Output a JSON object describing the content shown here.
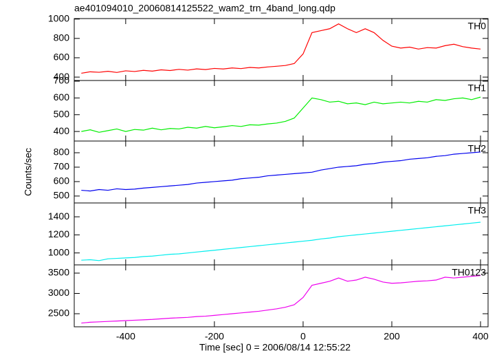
{
  "chart_data": [
    {
      "type": "line",
      "title": "ae401094010_20060814125522_wam2_trn_4band_long.qdp",
      "x": [
        -500,
        -480,
        -460,
        -440,
        -420,
        -400,
        -380,
        -360,
        -340,
        -320,
        -300,
        -280,
        -260,
        -240,
        -220,
        -200,
        -180,
        -160,
        -140,
        -120,
        -100,
        -80,
        -60,
        -40,
        -20,
        0,
        20,
        40,
        60,
        80,
        100,
        120,
        140,
        160,
        180,
        200,
        220,
        240,
        260,
        280,
        300,
        320,
        340,
        360,
        380,
        400
      ],
      "series": [
        {
          "name": "TH0",
          "color": "#ff0000",
          "values": [
            440,
            455,
            450,
            460,
            448,
            465,
            458,
            470,
            462,
            475,
            468,
            480,
            472,
            485,
            478,
            490,
            484,
            495,
            488,
            500,
            495,
            505,
            512,
            520,
            540,
            640,
            860,
            880,
            900,
            950,
            900,
            860,
            900,
            860,
            780,
            720,
            700,
            710,
            690,
            705,
            700,
            725,
            740,
            715,
            700,
            690
          ]
        }
      ],
      "xlim": [
        -516,
        417
      ],
      "xticks": [
        -400,
        -200,
        0,
        200,
        400
      ],
      "ylim": [
        365,
        1005
      ],
      "yticks": [
        400,
        600,
        800,
        1000
      ]
    },
    {
      "type": "line",
      "x": [
        -500,
        -480,
        -460,
        -440,
        -420,
        -400,
        -380,
        -360,
        -340,
        -320,
        -300,
        -280,
        -260,
        -240,
        -220,
        -200,
        -180,
        -160,
        -140,
        -120,
        -100,
        -80,
        -60,
        -40,
        -20,
        0,
        20,
        40,
        60,
        80,
        100,
        120,
        140,
        160,
        180,
        200,
        220,
        240,
        260,
        280,
        300,
        320,
        340,
        360,
        380,
        400
      ],
      "series": [
        {
          "name": "TH1",
          "color": "#00ee00",
          "values": [
            400,
            410,
            395,
            405,
            415,
            400,
            412,
            408,
            420,
            410,
            418,
            415,
            425,
            420,
            430,
            422,
            428,
            435,
            430,
            440,
            438,
            445,
            450,
            460,
            480,
            540,
            600,
            590,
            575,
            580,
            565,
            570,
            560,
            575,
            565,
            570,
            575,
            570,
            580,
            575,
            590,
            585,
            595,
            600,
            590,
            605
          ]
        }
      ],
      "xlim": [
        -516,
        417
      ],
      "xticks": [
        -400,
        -200,
        0,
        200,
        400
      ],
      "ylim": [
        343,
        704
      ],
      "yticks": [
        400,
        500,
        600,
        700
      ]
    },
    {
      "type": "line",
      "x": [
        -500,
        -480,
        -460,
        -440,
        -420,
        -400,
        -380,
        -360,
        -340,
        -320,
        -300,
        -280,
        -260,
        -240,
        -220,
        -200,
        -180,
        -160,
        -140,
        -120,
        -100,
        -80,
        -60,
        -40,
        -20,
        0,
        20,
        40,
        60,
        80,
        100,
        120,
        140,
        160,
        180,
        200,
        220,
        240,
        260,
        280,
        300,
        320,
        340,
        360,
        380,
        400
      ],
      "series": [
        {
          "name": "TH2",
          "color": "#0000ee",
          "values": [
            540,
            535,
            545,
            540,
            550,
            545,
            548,
            555,
            560,
            565,
            570,
            575,
            580,
            590,
            595,
            600,
            605,
            610,
            620,
            625,
            630,
            640,
            645,
            650,
            655,
            660,
            665,
            680,
            690,
            700,
            705,
            710,
            720,
            725,
            735,
            740,
            745,
            755,
            760,
            765,
            775,
            780,
            790,
            795,
            800,
            805
          ]
        }
      ],
      "xlim": [
        -516,
        417
      ],
      "xticks": [
        -400,
        -200,
        0,
        200,
        400
      ],
      "ylim": [
        452,
        881
      ],
      "yticks": [
        500,
        600,
        700,
        800
      ]
    },
    {
      "type": "line",
      "x": [
        -500,
        -480,
        -460,
        -440,
        -420,
        -400,
        -380,
        -360,
        -340,
        -320,
        -300,
        -280,
        -260,
        -240,
        -220,
        -200,
        -180,
        -160,
        -140,
        -120,
        -100,
        -80,
        -60,
        -40,
        -20,
        0,
        20,
        40,
        60,
        80,
        100,
        120,
        140,
        160,
        180,
        200,
        220,
        240,
        260,
        280,
        300,
        320,
        340,
        360,
        380,
        400
      ],
      "series": [
        {
          "name": "TH3",
          "color": "#00eeee",
          "values": [
            920,
            925,
            915,
            935,
            940,
            945,
            950,
            960,
            965,
            975,
            985,
            990,
            1000,
            1010,
            1020,
            1030,
            1040,
            1050,
            1060,
            1070,
            1080,
            1090,
            1100,
            1110,
            1120,
            1130,
            1140,
            1155,
            1165,
            1180,
            1190,
            1200,
            1210,
            1220,
            1230,
            1240,
            1250,
            1260,
            1270,
            1280,
            1290,
            1300,
            1310,
            1320,
            1330,
            1340
          ]
        }
      ],
      "xlim": [
        -516,
        417
      ],
      "xticks": [
        -400,
        -200,
        0,
        200,
        400
      ],
      "ylim": [
        868,
        1553
      ],
      "yticks": [
        1000,
        1200,
        1400
      ]
    },
    {
      "type": "line",
      "x_label": "Time [sec] 0 = 2006/08/14 12:55:22",
      "y_label": "Counts/sec",
      "x": [
        -500,
        -480,
        -460,
        -440,
        -420,
        -400,
        -380,
        -360,
        -340,
        -320,
        -300,
        -280,
        -260,
        -240,
        -220,
        -200,
        -180,
        -160,
        -140,
        -120,
        -100,
        -80,
        -60,
        -40,
        -20,
        0,
        20,
        40,
        60,
        80,
        100,
        120,
        140,
        160,
        180,
        200,
        220,
        240,
        260,
        280,
        300,
        320,
        340,
        360,
        380,
        400
      ],
      "series": [
        {
          "name": "TH0123",
          "color": "#ee00ee",
          "values": [
            2270,
            2290,
            2300,
            2310,
            2320,
            2330,
            2340,
            2350,
            2360,
            2375,
            2390,
            2400,
            2410,
            2430,
            2440,
            2460,
            2480,
            2500,
            2520,
            2540,
            2560,
            2590,
            2620,
            2660,
            2720,
            2900,
            3200,
            3250,
            3300,
            3380,
            3300,
            3330,
            3400,
            3350,
            3280,
            3250,
            3260,
            3280,
            3300,
            3310,
            3330,
            3400,
            3380,
            3400,
            3420,
            3440
          ]
        }
      ],
      "xlim": [
        -516,
        417
      ],
      "xticks": [
        -400,
        -200,
        0,
        200,
        400
      ],
      "ylim": [
        2178,
        3703
      ],
      "yticks": [
        2500,
        3000,
        3500
      ]
    }
  ]
}
